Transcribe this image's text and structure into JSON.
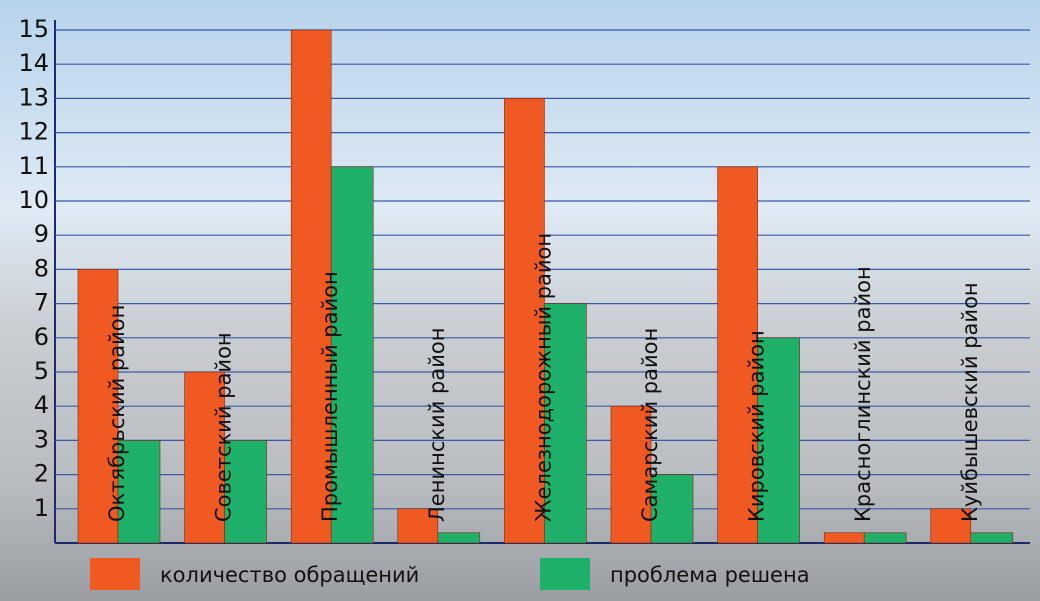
{
  "chart_data": {
    "type": "bar",
    "categories": [
      "Октябрьский район",
      "Советский район",
      "Промышленный район",
      "Ленинский район",
      "Железнодорожный район",
      "Самарский район",
      "Кировский район",
      "Красноглинский район",
      "Куйбышевский район"
    ],
    "series": [
      {
        "name": "количество обращений",
        "color": "#f05a22",
        "values": [
          8,
          5,
          15,
          1,
          13,
          4,
          11,
          0.3,
          1
        ]
      },
      {
        "name": "проблема решена",
        "color": "#1fb06a",
        "values": [
          3,
          3,
          11,
          0.3,
          7,
          2,
          6,
          0.3,
          0.3
        ]
      }
    ],
    "ylim": [
      0,
      15
    ],
    "yticks": [
      1,
      2,
      3,
      4,
      5,
      6,
      7,
      8,
      9,
      10,
      11,
      12,
      13,
      14,
      15
    ],
    "grid": true
  }
}
